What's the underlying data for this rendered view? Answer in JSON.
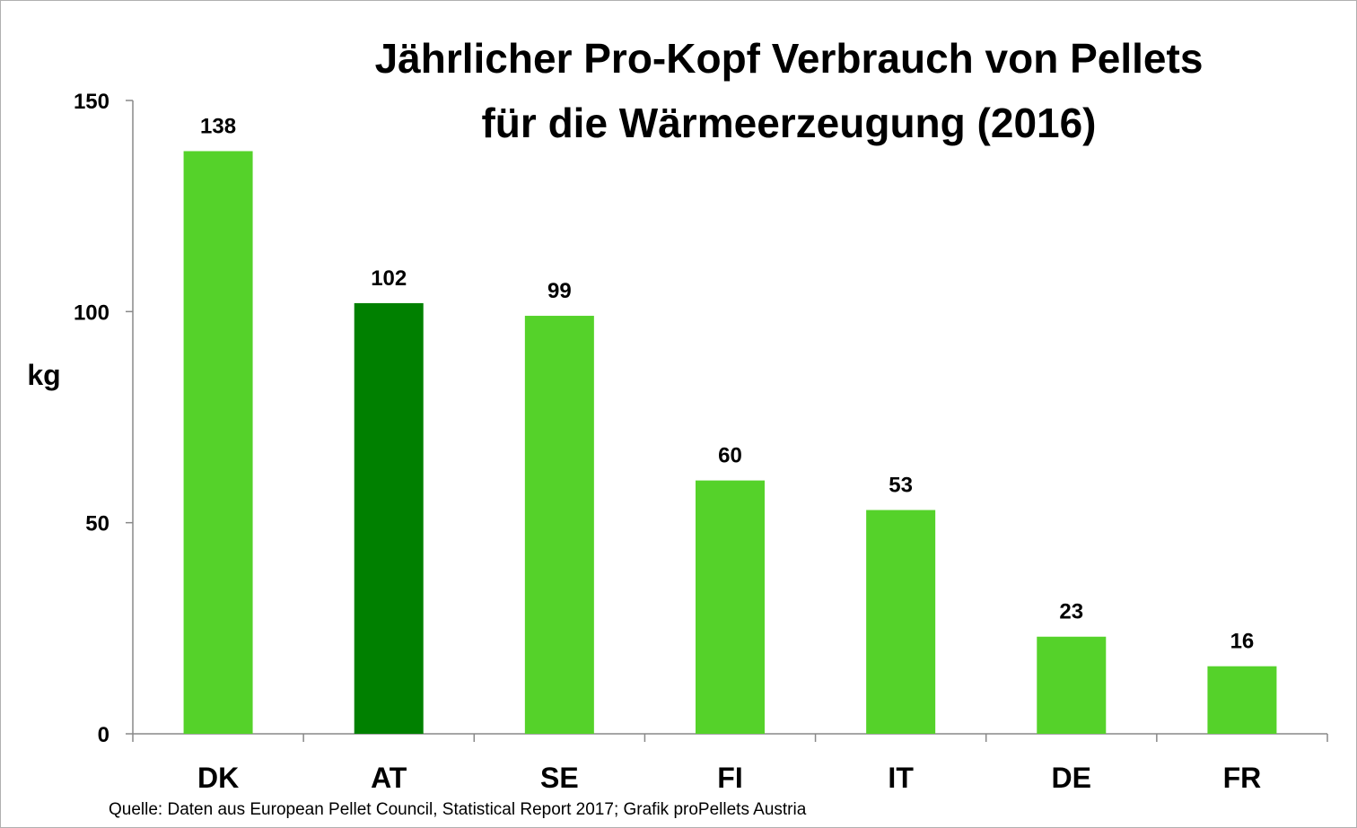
{
  "chart_data": {
    "type": "bar",
    "title": [
      "Jährlicher Pro-Kopf Verbrauch von Pellets",
      "für die Wärmeerzeugung (2016)"
    ],
    "ylabel": "kg",
    "xlabel": "",
    "categories": [
      "DK",
      "AT",
      "SE",
      "FI",
      "IT",
      "DE",
      "FR"
    ],
    "values": [
      138,
      102,
      99,
      60,
      53,
      23,
      16
    ],
    "ylim": [
      0,
      150
    ],
    "yticks": [
      0,
      50,
      100,
      150
    ],
    "grid": false,
    "legend": "none",
    "colors": {
      "default_bar": "#55d22a",
      "highlight_bar": "#008000",
      "axis": "#888888"
    },
    "highlight_category": "AT"
  },
  "source_note": "Quelle: Daten aus European Pellet Council, Statistical Report 2017; Grafik proPellets Austria"
}
